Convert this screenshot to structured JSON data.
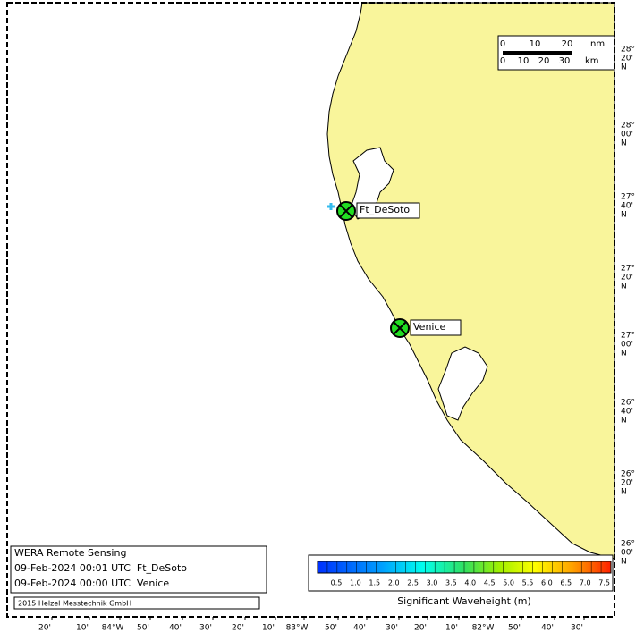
{
  "scale_bar": {
    "nm_ticks": [
      "0",
      "10",
      "20"
    ],
    "nm_unit": "nm",
    "km_ticks": [
      "0",
      "10",
      "20",
      "30"
    ],
    "km_unit": "km"
  },
  "lat_labels": [
    [
      "28°",
      "20'",
      "N"
    ],
    [
      "28°",
      "00'",
      "N"
    ],
    [
      "27°",
      "40'",
      "N"
    ],
    [
      "27°",
      "20'",
      "N"
    ],
    [
      "27°",
      "00'",
      "N"
    ],
    [
      "26°",
      "40'",
      "N"
    ],
    [
      "26°",
      "20'",
      "N"
    ],
    [
      "26°",
      "00'",
      "N"
    ]
  ],
  "lon_labels": [
    "20'",
    "10'",
    "84°W",
    "50'",
    "40'",
    "30'",
    "20'",
    "10'",
    "83°W",
    "50'",
    "40'",
    "30'",
    "20'",
    "10'",
    "82°W",
    "50'",
    "40'",
    "30'"
  ],
  "stations": [
    {
      "name": "Ft_DeSoto"
    },
    {
      "name": "Venice"
    }
  ],
  "info": {
    "title": "WERA Remote Sensing",
    "lines": [
      "09-Feb-2024 00:01 UTC  Ft_DeSoto",
      "09-Feb-2024 00:00 UTC  Venice"
    ],
    "credit": "2015 Helzel Messtechnik GmbH"
  },
  "colorbar": {
    "labels": [
      "0.5",
      "1.0",
      "1.5",
      "2.0",
      "2.5",
      "3.0",
      "3.5",
      "4.0",
      "4.5",
      "5.0",
      "5.5",
      "6.0",
      "6.5",
      "7.0",
      "7.5"
    ],
    "title": "Significant Waveheight (m)"
  }
}
